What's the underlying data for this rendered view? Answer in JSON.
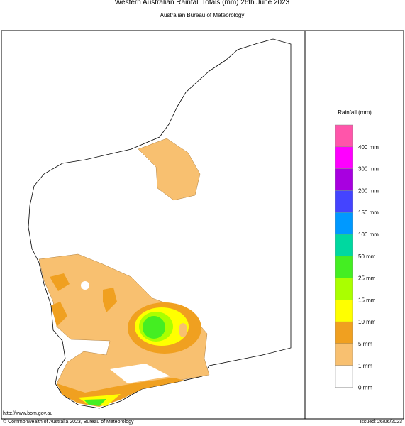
{
  "header": {
    "title": "Western Australian Rainfall Totals (mm) 26th June 2023",
    "subtitle": "Australian Bureau of Meteorology"
  },
  "legend": {
    "title": "Rainfall (mm)",
    "colors": [
      "#ff55aa",
      "#ff00ff",
      "#a800e0",
      "#4444ff",
      "#0099ff",
      "#00d8a0",
      "#44ee22",
      "#aaff00",
      "#ffff00",
      "#f0a020",
      "#f8c070",
      "#ffffff"
    ],
    "labels": [
      "400 mm",
      "300 mm",
      "200 mm",
      "150 mm",
      "100 mm",
      "50 mm",
      "25 mm",
      "15 mm",
      "10 mm",
      "5 mm",
      "1 mm",
      "0 mm"
    ]
  },
  "footer": {
    "url": "http://www.bom.gov.au",
    "copyright": "© Commonwealth of Australia 2023, Bureau of Meteorology",
    "issued": "Issued: 26/06/2023"
  }
}
